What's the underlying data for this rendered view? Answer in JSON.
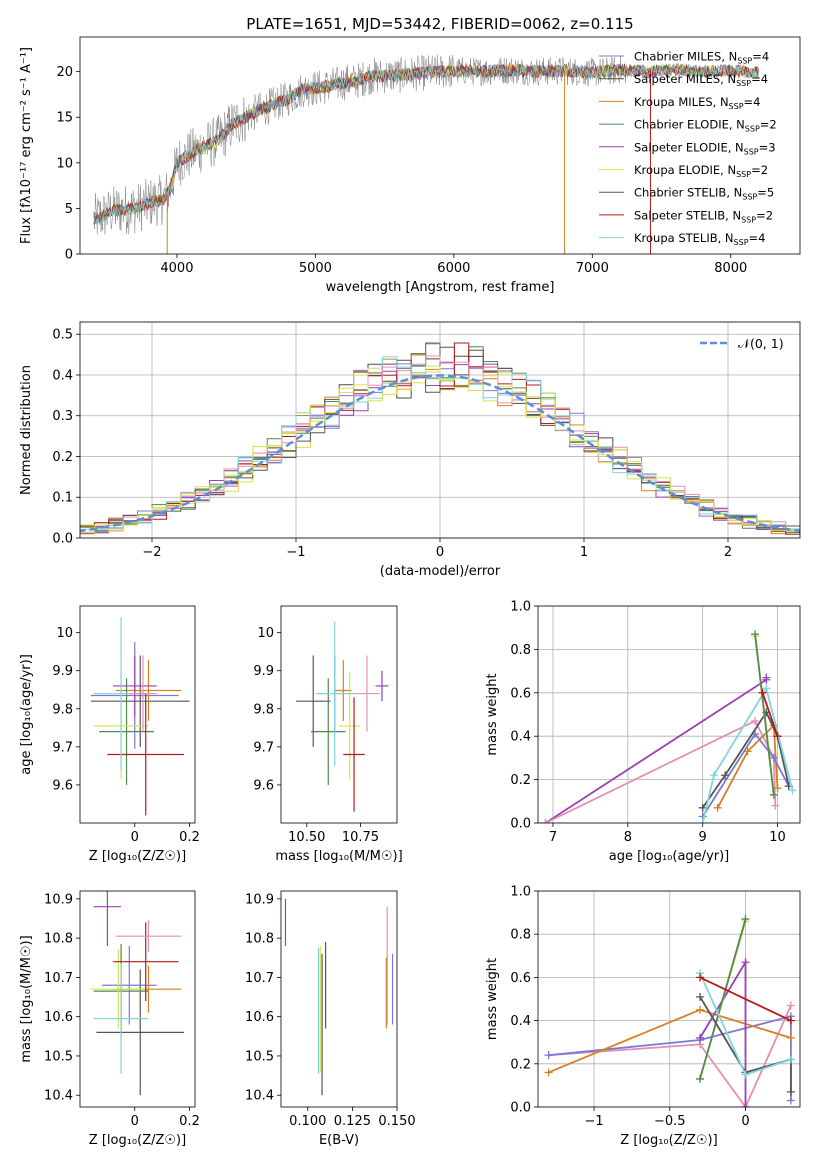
{
  "chart_data": [
    {
      "id": "spectrum",
      "type": "line",
      "title": "PLATE=1651, MJD=53442, FIBERID=0062, z=0.115",
      "xlabel": "wavelength [Angstrom, rest frame]",
      "ylabel": "Flux [fλ10⁻¹⁷ erg cm⁻² s⁻¹ A⁻¹]",
      "xlim": [
        3300,
        8500
      ],
      "ylim": [
        0,
        23.8
      ],
      "xticks": [
        4000,
        5000,
        6000,
        7000,
        8000
      ],
      "yticks": [
        0,
        5,
        10,
        15,
        20
      ],
      "legend_position": "upper-right",
      "spikes": [
        3930,
        6800,
        7420
      ],
      "continuum_nodes": [
        [
          3400,
          3.8
        ],
        [
          3550,
          4.8
        ],
        [
          3700,
          5.0
        ],
        [
          3800,
          5.6
        ],
        [
          3900,
          6.0
        ],
        [
          3950,
          7.0
        ],
        [
          4000,
          10.0
        ],
        [
          4100,
          11.0
        ],
        [
          4200,
          11.8
        ],
        [
          4300,
          12.5
        ],
        [
          4400,
          14.2
        ],
        [
          4500,
          15.0
        ],
        [
          4600,
          15.8
        ],
        [
          4700,
          16.4
        ],
        [
          4800,
          17.0
        ],
        [
          4900,
          18.0
        ],
        [
          5000,
          18.2
        ],
        [
          5100,
          18.4
        ],
        [
          5200,
          18.8
        ],
        [
          5300,
          19.0
        ],
        [
          5400,
          19.5
        ],
        [
          5600,
          19.6
        ],
        [
          5800,
          19.9
        ],
        [
          6000,
          20.1
        ],
        [
          6200,
          20.0
        ],
        [
          6400,
          20.2
        ],
        [
          6600,
          20.0
        ],
        [
          6800,
          20.1
        ],
        [
          7000,
          19.9
        ],
        [
          7200,
          20.2
        ],
        [
          7400,
          20.0
        ],
        [
          7600,
          20.2
        ],
        [
          7800,
          20.0
        ],
        [
          8000,
          20.1
        ],
        [
          8200,
          19.9
        ]
      ],
      "series": [
        {
          "name": "Chabrier MILES, N",
          "sub": "SSP",
          "suffix": "=4",
          "color": "#7b79d6"
        },
        {
          "name": "Salpeter MILES, N",
          "sub": "SSP",
          "suffix": "=4",
          "color": "#4a4a4a"
        },
        {
          "name": "Kroupa MILES, N",
          "sub": "SSP",
          "suffix": "=4",
          "color": "#d4821f"
        },
        {
          "name": "Chabrier ELODIE, N",
          "sub": "SSP",
          "suffix": "=2",
          "color": "#4f8a4f"
        },
        {
          "name": "Salpeter ELODIE, N",
          "sub": "SSP",
          "suffix": "=3",
          "color": "#9c3fb5"
        },
        {
          "name": "Kroupa ELODIE, N",
          "sub": "SSP",
          "suffix": "=2",
          "color": "#d9e34a"
        },
        {
          "name": "Chabrier STELIB, N",
          "sub": "SSP",
          "suffix": "=5",
          "color": "#555555"
        },
        {
          "name": "Salpeter STELIB, N",
          "sub": "SSP",
          "suffix": "=2",
          "color": "#b51b1b"
        },
        {
          "name": "Kroupa STELIB, N",
          "sub": "SSP",
          "suffix": "=4",
          "color": "#7fd6dc"
        }
      ]
    },
    {
      "id": "residuals",
      "type": "histogram",
      "xlabel": "(data-model)/error",
      "ylabel": "Normed distribution",
      "xlim": [
        -2.5,
        2.5
      ],
      "ylim": [
        0,
        0.53
      ],
      "xticks": [
        -2,
        -1,
        0,
        1,
        2
      ],
      "yticks": [
        0.0,
        0.1,
        0.2,
        0.3,
        0.4,
        0.5
      ],
      "grid": true,
      "bin_width": 0.1,
      "reference": {
        "label": "𝒩(0, 1)",
        "color": "#5b8fd9"
      },
      "legend_position": "upper-right"
    },
    {
      "id": "age-vs-Z",
      "type": "errorbar",
      "xlabel": "Z [log₁₀(Z/Z☉)]",
      "ylabel": "age  [log₁₀(age/yr)]",
      "xlim": [
        -0.2,
        0.22
      ],
      "ylim": [
        9.5,
        10.07
      ],
      "xticks": [
        0.0,
        0.2
      ],
      "yticks": [
        9.6,
        9.7,
        9.8,
        9.9,
        10.0
      ],
      "points": [
        {
          "x": 0.0,
          "y": 9.835,
          "xerr": 0.16,
          "yerr": 0.14,
          "color": "#7b79d6"
        },
        {
          "x": 0.02,
          "y": 9.82,
          "xerr": 0.18,
          "yerr": 0.12,
          "color": "#555555"
        },
        {
          "x": 0.05,
          "y": 9.848,
          "xerr": 0.12,
          "yerr": 0.08,
          "color": "#d4821f"
        },
        {
          "x": -0.03,
          "y": 9.74,
          "xerr": 0.1,
          "yerr": 0.14,
          "color": "#4f8a4f"
        },
        {
          "x": 0.0,
          "y": 9.86,
          "xerr": 0.08,
          "yerr": 0.08,
          "color": "#9c3fb5"
        },
        {
          "x": -0.05,
          "y": 9.755,
          "xerr": 0.1,
          "yerr": 0.14,
          "color": "#d9e34a"
        },
        {
          "x": 0.04,
          "y": 9.68,
          "xerr": 0.14,
          "yerr": 0.16,
          "color": "#b51b1b"
        },
        {
          "x": -0.05,
          "y": 9.84,
          "xerr": 0.1,
          "yerr": 0.2,
          "color": "#7fd6dc"
        },
        {
          "x": 0.03,
          "y": 9.84,
          "xerr": 0.05,
          "yerr": 0.1,
          "color": "#e48fb5"
        }
      ]
    },
    {
      "id": "age-vs-mass",
      "type": "errorbar",
      "xlabel": "mass [log₁₀(M/M☉)]",
      "ylabel": "",
      "xlim": [
        10.38,
        10.92
      ],
      "ylim": [
        9.5,
        10.07
      ],
      "xticks": [
        10.5,
        10.75
      ],
      "xtick_labels": [
        "10.50",
        "10.75"
      ],
      "yticks": [
        9.6,
        9.7,
        9.8,
        9.9,
        10.0
      ],
      "points": [
        {
          "x": 10.53,
          "y": 9.82,
          "xerr": 0.08,
          "yerr": 0.12,
          "color": "#555555"
        },
        {
          "x": 10.63,
          "y": 9.84,
          "xerr": 0.08,
          "yerr": 0.1,
          "color": "#7b79d6"
        },
        {
          "x": 10.67,
          "y": 9.848,
          "xerr": 0.04,
          "yerr": 0.08,
          "color": "#d4821f"
        },
        {
          "x": 10.6,
          "y": 9.74,
          "xerr": 0.08,
          "yerr": 0.14,
          "color": "#4f8a4f"
        },
        {
          "x": 10.85,
          "y": 9.86,
          "xerr": 0.03,
          "yerr": 0.04,
          "color": "#9c3fb5"
        },
        {
          "x": 10.7,
          "y": 9.755,
          "xerr": 0.05,
          "yerr": 0.14,
          "color": "#d9e34a"
        },
        {
          "x": 10.72,
          "y": 9.68,
          "xerr": 0.05,
          "yerr": 0.15,
          "color": "#b51b1b"
        },
        {
          "x": 10.63,
          "y": 9.84,
          "xerr": 0.09,
          "yerr": 0.19,
          "color": "#7fd6dc"
        },
        {
          "x": 10.78,
          "y": 9.84,
          "xerr": 0.06,
          "yerr": 0.1,
          "color": "#e48fb5"
        }
      ]
    },
    {
      "id": "weight-vs-age",
      "type": "line",
      "xlabel": "age  [log₁₀(age/yr)]",
      "ylabel": "mass weight",
      "xlim": [
        6.8,
        10.3
      ],
      "ylim": [
        0,
        1.0
      ],
      "xticks": [
        7,
        8,
        9,
        10
      ],
      "yticks": [
        0.0,
        0.2,
        0.4,
        0.6,
        0.8,
        1.0
      ],
      "grid": true,
      "lines": [
        {
          "color": "#9c3fb5",
          "pts": [
            [
              6.9,
              0.0
            ],
            [
              9.85,
              0.66
            ],
            [
              9.85,
              0.67
            ]
          ]
        },
        {
          "color": "#e48fb5",
          "pts": [
            [
              6.9,
              0.0
            ],
            [
              9.7,
              0.47
            ],
            [
              9.95,
              0.3
            ],
            [
              9.97,
              0.08
            ]
          ]
        },
        {
          "color": "#d4821f",
          "pts": [
            [
              9.2,
              0.07
            ],
            [
              9.6,
              0.33
            ],
            [
              9.95,
              0.45
            ],
            [
              10.0,
              0.16
            ]
          ]
        },
        {
          "color": "#7b79d6",
          "pts": [
            [
              9.0,
              0.03
            ],
            [
              9.7,
              0.41
            ],
            [
              9.95,
              0.3
            ],
            [
              10.15,
              0.17
            ]
          ]
        },
        {
          "color": "#555555",
          "pts": [
            [
              9.0,
              0.07
            ],
            [
              9.3,
              0.22
            ],
            [
              9.85,
              0.51
            ],
            [
              10.0,
              0.4
            ],
            [
              10.15,
              0.17
            ]
          ]
        },
        {
          "color": "#7fd6dc",
          "pts": [
            [
              9.0,
              0.0
            ],
            [
              9.15,
              0.22
            ],
            [
              9.85,
              0.62
            ],
            [
              10.2,
              0.15
            ]
          ]
        },
        {
          "color": "#d9e34a",
          "pts": [
            [
              9.7,
              0.86
            ],
            [
              9.95,
              0.13
            ]
          ]
        },
        {
          "color": "#4f8a4f",
          "pts": [
            [
              9.7,
              0.87
            ],
            [
              9.95,
              0.13
            ]
          ]
        },
        {
          "color": "#b51b1b",
          "pts": [
            [
              9.8,
              0.6
            ],
            [
              10.0,
              0.4
            ]
          ]
        }
      ]
    },
    {
      "id": "mass-vs-Z",
      "type": "errorbar",
      "xlabel": "Z [log₁₀(Z/Z☉)]",
      "ylabel": "mass [log₁₀(M/M☉)]",
      "xlim": [
        -0.2,
        0.22
      ],
      "ylim": [
        10.37,
        10.92
      ],
      "xticks": [
        0.0,
        0.2
      ],
      "yticks": [
        10.4,
        10.5,
        10.6,
        10.7,
        10.8,
        10.9
      ],
      "points": [
        {
          "x": 0.02,
          "y": 10.56,
          "xerr": 0.16,
          "yerr": 0.16,
          "color": "#555555"
        },
        {
          "x": -0.02,
          "y": 10.68,
          "xerr": 0.1,
          "yerr": 0.1,
          "color": "#7b79d6"
        },
        {
          "x": 0.05,
          "y": 10.67,
          "xerr": 0.12,
          "yerr": 0.06,
          "color": "#d4821f"
        },
        {
          "x": -0.05,
          "y": 10.665,
          "xerr": 0.1,
          "yerr": 0.12,
          "color": "#4f8a4f"
        },
        {
          "x": -0.1,
          "y": 10.88,
          "xerr": 0.05,
          "yerr": 0.1,
          "color": "#9c3fb5"
        },
        {
          "x": -0.06,
          "y": 10.67,
          "xerr": 0.1,
          "yerr": 0.1,
          "color": "#d9e34a"
        },
        {
          "x": 0.04,
          "y": 10.74,
          "xerr": 0.12,
          "yerr": 0.1,
          "color": "#b51b1b"
        },
        {
          "x": -0.05,
          "y": 10.595,
          "xerr": 0.1,
          "yerr": 0.14,
          "color": "#7fd6dc"
        },
        {
          "x": 0.05,
          "y": 10.805,
          "xerr": 0.12,
          "yerr": 0.04,
          "color": "#e48fb5"
        }
      ]
    },
    {
      "id": "mass-vs-ebv",
      "type": "errorbar",
      "xlabel": "E(B-V)",
      "ylabel": "",
      "xlim": [
        0.085,
        0.15
      ],
      "ylim": [
        10.37,
        10.92
      ],
      "xticks": [
        0.1,
        0.125,
        0.15
      ],
      "xtick_labels": [
        "0.100",
        "0.125",
        "0.150"
      ],
      "yticks": [
        10.4,
        10.5,
        10.6,
        10.7,
        10.8,
        10.9
      ],
      "points": [
        {
          "x": 0.0875,
          "y": 10.84,
          "xerr": 0,
          "yerr": 0.06,
          "color": "#9c3fb5"
        },
        {
          "x": 0.106,
          "y": 10.615,
          "xerr": 0,
          "yerr": 0.16,
          "color": "#7fd6dc"
        },
        {
          "x": 0.107,
          "y": 10.62,
          "xerr": 0,
          "yerr": 0.16,
          "color": "#d9e34a"
        },
        {
          "x": 0.108,
          "y": 10.58,
          "xerr": 0,
          "yerr": 0.18,
          "color": "#555555"
        },
        {
          "x": 0.11,
          "y": 10.68,
          "xerr": 0,
          "yerr": 0.11,
          "color": "#555555"
        },
        {
          "x": 0.1445,
          "y": 10.73,
          "xerr": 0,
          "yerr": 0.15,
          "color": "#e48fb5"
        },
        {
          "x": 0.144,
          "y": 10.66,
          "xerr": 0,
          "yerr": 0.09,
          "color": "#d4821f"
        },
        {
          "x": 0.1475,
          "y": 10.67,
          "xerr": 0,
          "yerr": 0.09,
          "color": "#7b79d6"
        }
      ]
    },
    {
      "id": "weight-vs-Z",
      "type": "line",
      "xlabel": "Z [log₁₀(Z/Z☉)]",
      "ylabel": "mass weight",
      "xlim": [
        -1.37,
        0.36
      ],
      "ylim": [
        0,
        1.0
      ],
      "xticks": [
        -1.0,
        -0.5,
        0.0
      ],
      "yticks": [
        0.0,
        0.2,
        0.4,
        0.6,
        0.8,
        1.0
      ],
      "grid": true,
      "lines": [
        {
          "color": "#e48fb5",
          "pts": [
            [
              -1.3,
              0.24
            ],
            [
              -0.3,
              0.29
            ],
            [
              0.0,
              0.0
            ],
            [
              0.3,
              0.47
            ]
          ]
        },
        {
          "color": "#7b79d6",
          "pts": [
            [
              -1.3,
              0.24
            ],
            [
              -0.3,
              0.31
            ],
            [
              0.3,
              0.42
            ],
            [
              0.3,
              0.03
            ]
          ]
        },
        {
          "color": "#d4821f",
          "pts": [
            [
              -1.3,
              0.16
            ],
            [
              -0.3,
              0.45
            ],
            [
              0.3,
              0.32
            ]
          ]
        },
        {
          "color": "#9c3fb5",
          "pts": [
            [
              -0.3,
              0.32
            ],
            [
              0.0,
              0.67
            ],
            [
              0.0,
              0.0
            ]
          ]
        },
        {
          "color": "#d9e34a",
          "pts": [
            [
              -0.3,
              0.13
            ],
            [
              0.0,
              0.86
            ]
          ]
        },
        {
          "color": "#4f8a4f",
          "pts": [
            [
              -0.3,
              0.13
            ],
            [
              0.0,
              0.87
            ]
          ]
        },
        {
          "color": "#555555",
          "pts": [
            [
              -0.3,
              0.51
            ],
            [
              0.0,
              0.16
            ],
            [
              0.3,
              0.22
            ],
            [
              0.3,
              0.07
            ]
          ]
        },
        {
          "color": "#7fd6dc",
          "pts": [
            [
              -0.3,
              0.62
            ],
            [
              0.0,
              0.15
            ],
            [
              0.3,
              0.22
            ]
          ]
        },
        {
          "color": "#b51b1b",
          "pts": [
            [
              -0.3,
              0.6
            ],
            [
              0.3,
              0.4
            ]
          ]
        }
      ]
    }
  ]
}
